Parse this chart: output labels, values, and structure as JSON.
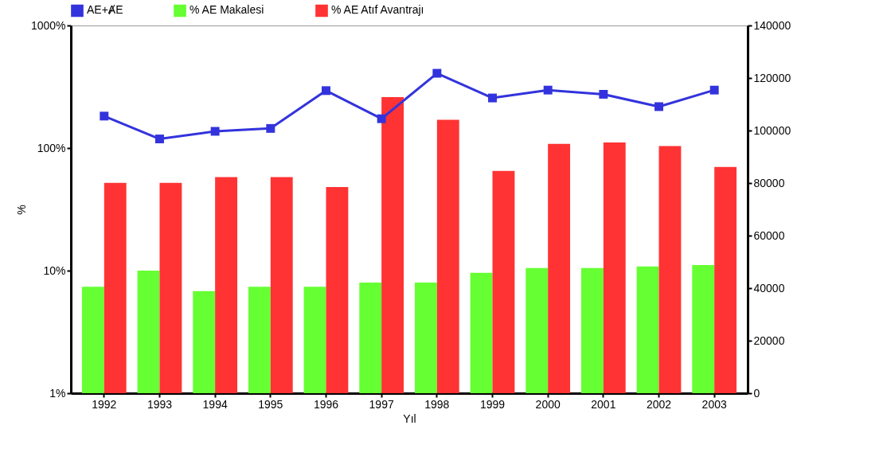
{
  "chart_data": {
    "type": "bar",
    "xlabel": "Yıl",
    "ylabel": "%",
    "categories": [
      "1992",
      "1993",
      "1994",
      "1995",
      "1996",
      "1997",
      "1998",
      "1999",
      "2000",
      "2001",
      "2002",
      "2003"
    ],
    "series": [
      {
        "name": "AE+ȺE",
        "type": "line",
        "axis": "y2",
        "color": "#3333dd",
        "values": [
          105500,
          96800,
          99700,
          100800,
          115200,
          104500,
          121800,
          112400,
          115400,
          113800,
          109100,
          115400
        ]
      },
      {
        "name": "% AE Makalesi",
        "color": "#66ff33",
        "values": [
          7.4,
          10,
          6.8,
          7.4,
          7.4,
          8.0,
          8.0,
          9.6,
          10.5,
          10.5,
          10.8,
          11.1
        ]
      },
      {
        "name": "% AE Atıf Avantrajı",
        "color": "#ff3333",
        "values": [
          52,
          52,
          58,
          58,
          48,
          260,
          170,
          65,
          108,
          111,
          104,
          70
        ]
      }
    ],
    "log": "y",
    "ylim": [
      1,
      1000
    ],
    "yticks": [
      {
        "value": 1,
        "label": "1%"
      },
      {
        "value": 10,
        "label": "10%"
      },
      {
        "value": 100,
        "label": "100%"
      },
      {
        "value": 1000,
        "label": "1000%"
      }
    ],
    "y2lim": [
      0,
      140000
    ],
    "y2ticks": [
      0,
      20000,
      40000,
      60000,
      80000,
      100000,
      120000,
      140000
    ],
    "grid": false,
    "legend": "top",
    "marker": "square"
  }
}
